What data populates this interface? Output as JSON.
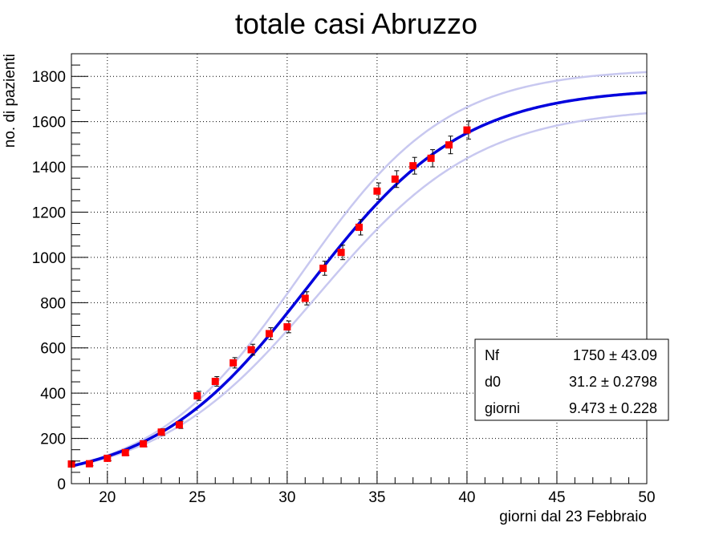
{
  "chart_data": {
    "type": "scatter",
    "title": "totale casi Abruzzo",
    "xlabel": "giorni dal 23 Febbraio",
    "ylabel": "no. di pazienti",
    "xlim": [
      18,
      50
    ],
    "ylim": [
      0,
      1900
    ],
    "x_ticks": [
      20,
      25,
      30,
      35,
      40,
      45,
      50
    ],
    "y_ticks": [
      0,
      200,
      400,
      600,
      800,
      1000,
      1200,
      1400,
      1600,
      1800
    ],
    "grid": true,
    "series": [
      {
        "kind": "data-points",
        "color": "#ff0000",
        "x": [
          18,
          19,
          20,
          21,
          22,
          23,
          24,
          25,
          26,
          27,
          28,
          29,
          30,
          31,
          32,
          33,
          34,
          35,
          36,
          37,
          38,
          39,
          40
        ],
        "y": [
          87,
          88,
          112,
          137,
          176,
          228,
          260,
          388,
          452,
          534,
          592,
          663,
          693,
          819,
          952,
          1022,
          1133,
          1293,
          1346,
          1405,
          1438,
          1497,
          1563
        ],
        "yerr": [
          9,
          9,
          11,
          12,
          13,
          15,
          16,
          20,
          21,
          23,
          24,
          26,
          26,
          29,
          31,
          32,
          34,
          36,
          37,
          37,
          38,
          39,
          40
        ]
      },
      {
        "kind": "fit",
        "model": "logistic",
        "color": "#0000dd",
        "params": {
          "Nf": 1750,
          "d0": 31.2,
          "giorni": 9.473
        }
      },
      {
        "kind": "fit-band-upper",
        "model": "logistic",
        "color": "#c8c8f0",
        "params": {
          "Nf": 1835,
          "d0": 30.7,
          "giorni": 9.0
        }
      },
      {
        "kind": "fit-band-lower",
        "model": "logistic",
        "color": "#c8c8f0",
        "params": {
          "Nf": 1665,
          "d0": 31.7,
          "giorni": 9.9
        }
      }
    ],
    "stats_box": {
      "placement": "bottom-right",
      "rows": [
        {
          "name": "Nf",
          "value": "1750",
          "error": "43.09"
        },
        {
          "name": "d0",
          "value": "31.2",
          "error": "0.2798"
        },
        {
          "name": "giorni",
          "value": "9.473",
          "error": "0.228"
        }
      ]
    }
  }
}
